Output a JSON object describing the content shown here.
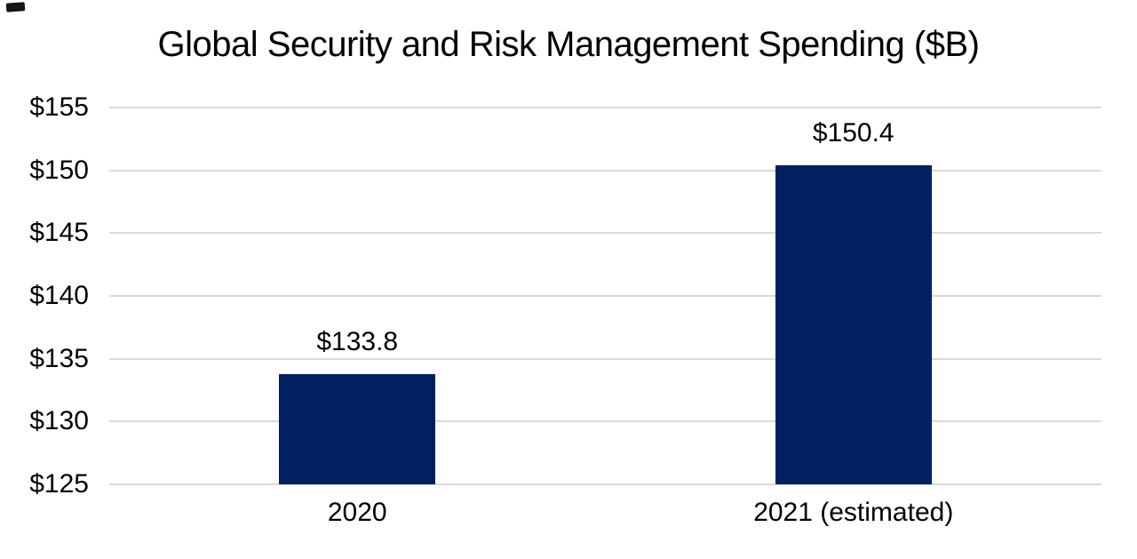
{
  "chart_data": {
    "type": "bar",
    "title": "Global Security and Risk Management Spending ($B)",
    "categories": [
      "2020",
      "2021 (estimated)"
    ],
    "values": [
      133.8,
      150.4
    ],
    "data_labels": [
      "$133.8",
      "$150.4"
    ],
    "xlabel": "",
    "ylabel": "",
    "ylim": [
      125,
      155
    ],
    "y_tick_step": 5,
    "y_ticks": [
      {
        "value": 155,
        "label": "$155"
      },
      {
        "value": 150,
        "label": "$150"
      },
      {
        "value": 145,
        "label": "$145"
      },
      {
        "value": 140,
        "label": "$140"
      },
      {
        "value": 135,
        "label": "$135"
      },
      {
        "value": 130,
        "label": "$130"
      },
      {
        "value": 125,
        "label": "$125"
      }
    ],
    "grid": true,
    "legend": "none",
    "bar_width_fraction": 0.315,
    "colors": {
      "bar": "#002060",
      "gridline": "#d9d9d9",
      "text": "#000000",
      "background": "#ffffff"
    }
  }
}
